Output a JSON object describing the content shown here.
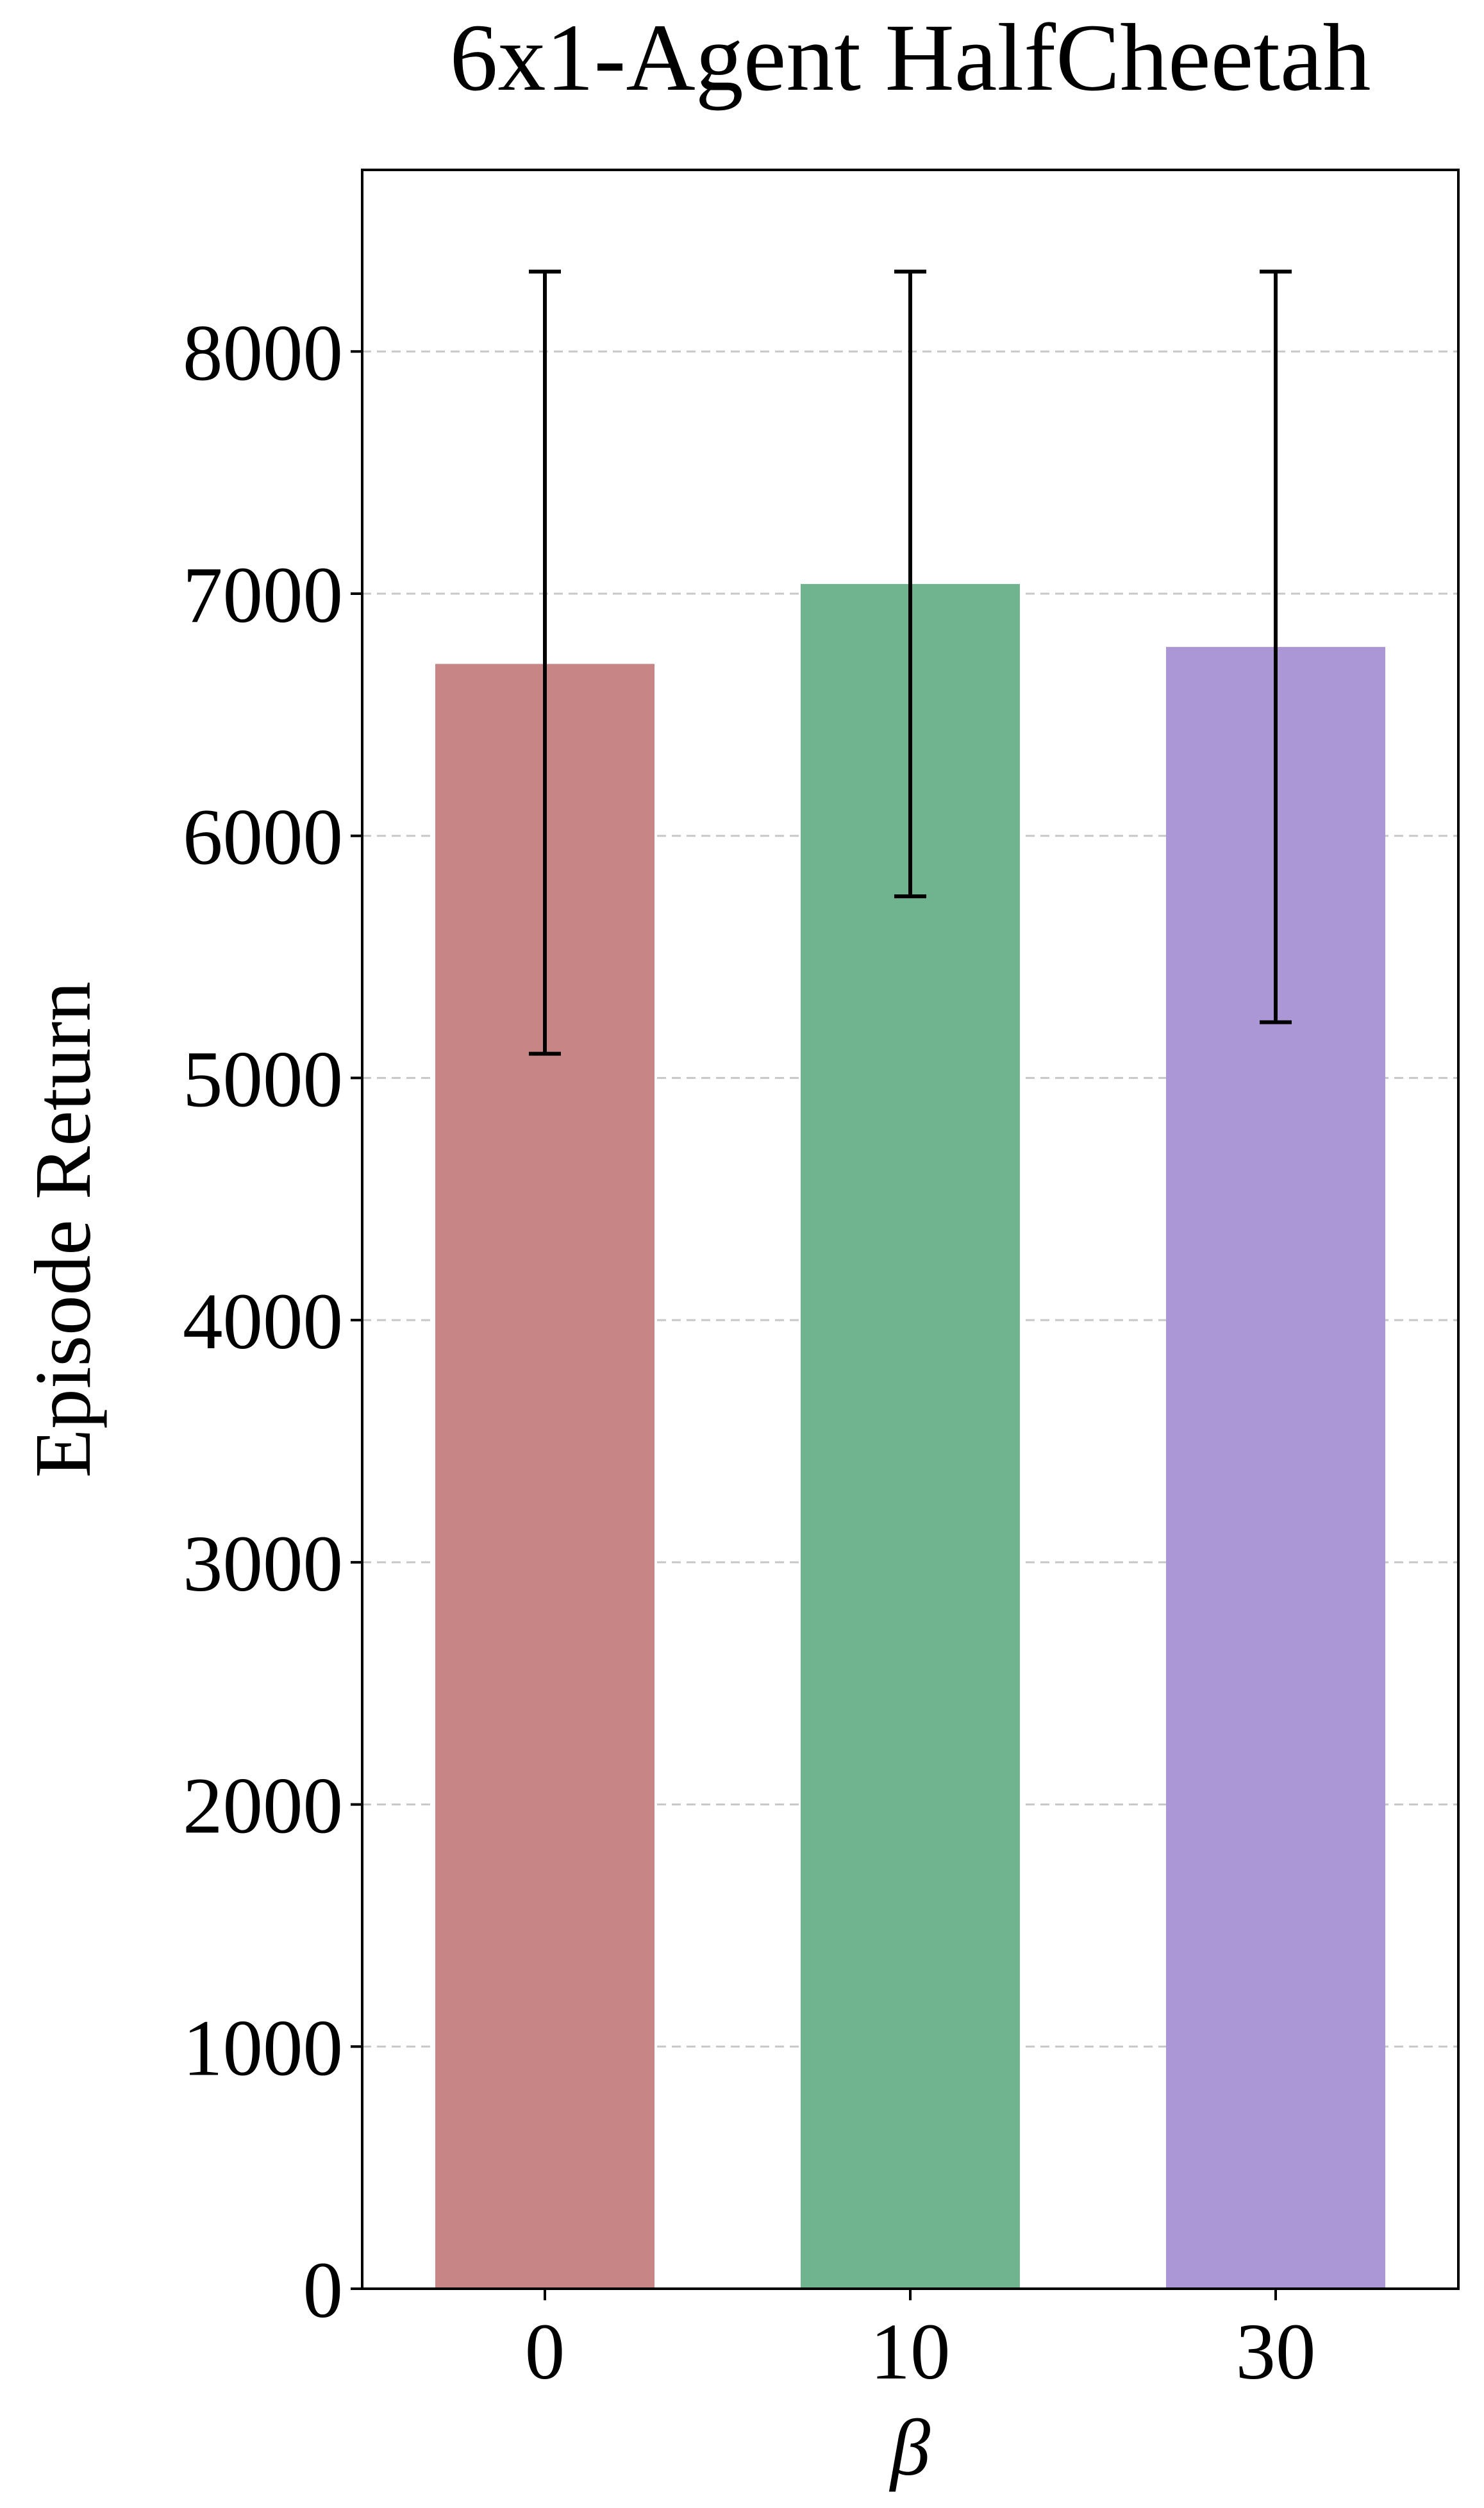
{
  "chart_data": {
    "type": "bar",
    "title": "6x1-Agent HalfCheetah",
    "xlabel": "β",
    "ylabel": "Episode Return",
    "categories": [
      "0",
      "10",
      "30"
    ],
    "values": [
      6710,
      7040,
      6780
    ],
    "error_bars": [
      {
        "low": 5100,
        "high": 8330
      },
      {
        "low": 5750,
        "high": 8330
      },
      {
        "low": 5230,
        "high": 8330
      }
    ],
    "colors": [
      "#c88585",
      "#6fb38f",
      "#ab97d6"
    ],
    "ylim": [
      0,
      8750
    ],
    "yticks": [
      0,
      1000,
      2000,
      3000,
      4000,
      5000,
      6000,
      7000,
      8000
    ],
    "grid": "horizontal dashed",
    "legend": "none"
  }
}
